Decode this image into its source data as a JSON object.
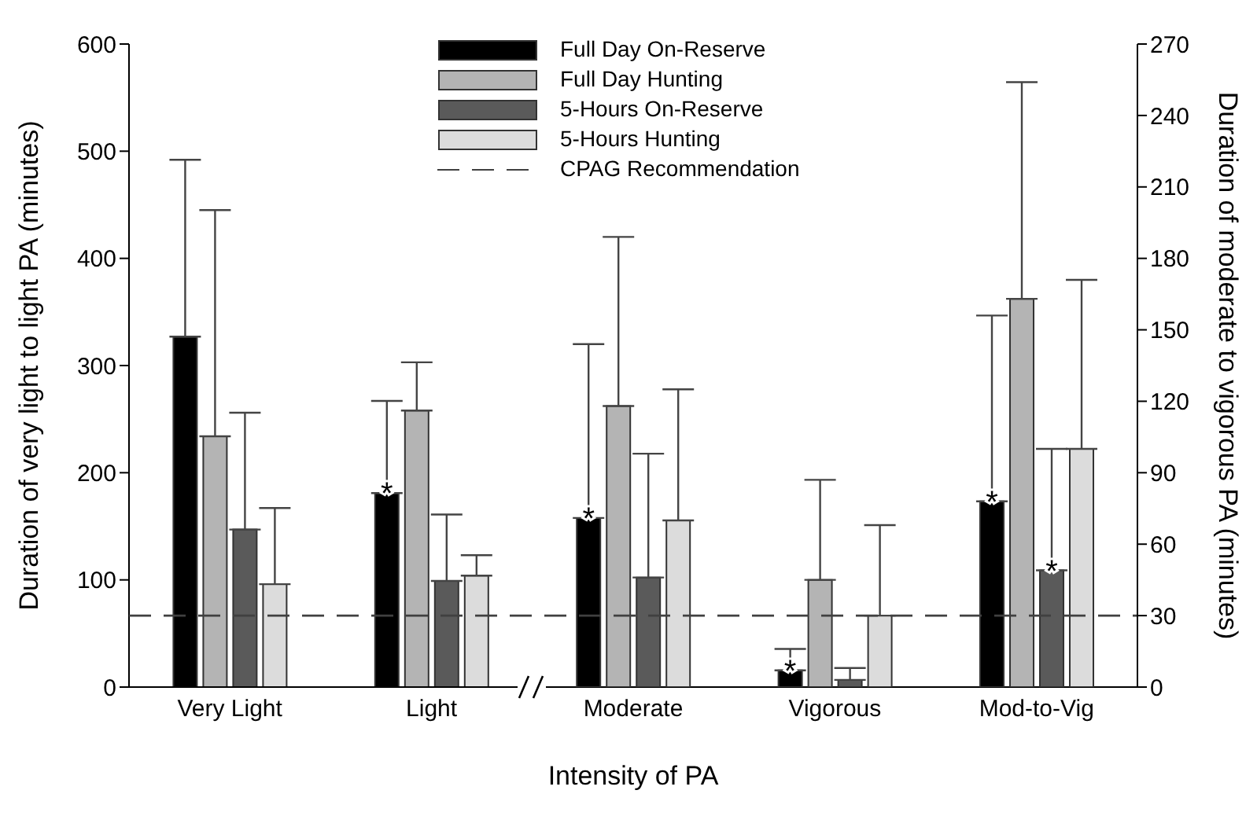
{
  "chart_data": {
    "type": "bar",
    "xlabel": "Intensity of PA",
    "ylabel": "Duration of very light to light PA (minutes)",
    "y2label": "Duration of moderate to vigorous PA (minutes)",
    "categories": [
      "Very Light",
      "Light",
      "Moderate",
      "Vigorous",
      "Mod-to-Vig"
    ],
    "series": [
      {
        "name": "Full Day On-Reserve",
        "color": "#000000",
        "values": [
          327,
          181,
          null,
          null,
          null
        ],
        "errors": [
          [
            327,
            492
          ],
          [
            181,
            267
          ],
          null,
          null,
          null
        ]
      },
      {
        "name": "Full Day Hunting",
        "color": "#b4b4b4",
        "values": [
          234,
          258,
          null,
          null,
          null
        ],
        "errors": [
          [
            234,
            445
          ],
          [
            258,
            303
          ],
          null,
          null,
          null
        ]
      },
      {
        "name": "5-Hours On-Reserve",
        "color": "#5a5a5a",
        "values": [
          147,
          99,
          null,
          null,
          null
        ],
        "errors": [
          [
            147,
            256
          ],
          [
            99,
            161
          ],
          null,
          null,
          null
        ]
      },
      {
        "name": "5-Hours Hunting",
        "color": "#dcdcdc",
        "values": [
          96,
          104,
          null,
          null,
          null
        ],
        "errors": [
          [
            96,
            167
          ],
          [
            104,
            123
          ],
          null,
          null,
          null
        ]
      },
      {
        "axis": "y2",
        "color": "#000000",
        "values": [
          null,
          null,
          71,
          7,
          78
        ],
        "errors": [
          null,
          null,
          [
            71,
            144
          ],
          [
            7,
            16
          ],
          [
            78,
            156
          ]
        ]
      },
      {
        "axis": "y2",
        "color": "#b4b4b4",
        "values": [
          null,
          null,
          118,
          45,
          163
        ],
        "errors": [
          null,
          null,
          [
            118,
            189
          ],
          [
            45,
            87
          ],
          [
            163,
            254
          ]
        ]
      },
      {
        "axis": "y2",
        "color": "#5a5a5a",
        "values": [
          null,
          null,
          46,
          3,
          49
        ],
        "errors": [
          null,
          null,
          [
            46,
            98
          ],
          [
            3,
            8
          ],
          [
            49,
            100
          ]
        ]
      },
      {
        "axis": "y2",
        "color": "#dcdcdc",
        "values": [
          null,
          null,
          70,
          30,
          100
        ],
        "errors": [
          null,
          null,
          [
            70,
            125
          ],
          [
            30,
            68
          ],
          [
            100,
            171
          ]
        ]
      }
    ],
    "ylim": [
      0,
      600
    ],
    "yticks": [
      0,
      100,
      200,
      300,
      400,
      500,
      600
    ],
    "y2lim": [
      0,
      270
    ],
    "y2ticks": [
      0,
      30,
      60,
      90,
      120,
      150,
      180,
      210,
      240,
      270
    ],
    "ref_lines": [
      {
        "axis": "y2",
        "value": 30,
        "label": "CPAG Recommendation",
        "color": "#404040",
        "line_style": "dashed"
      }
    ],
    "annotations": [
      {
        "text": "*",
        "x": "Light",
        "y": 181
      },
      {
        "text": "*",
        "x": "Moderate",
        "y": 71
      },
      {
        "text": "*",
        "x": "Vigorous",
        "y": 7
      },
      {
        "text": "*",
        "x": "Mod-to-Vig",
        "y": 49
      },
      {
        "text": "*",
        "x": "Mod-to-Vig",
        "y": 78
      }
    ],
    "legend": "top",
    "grid": false
  }
}
